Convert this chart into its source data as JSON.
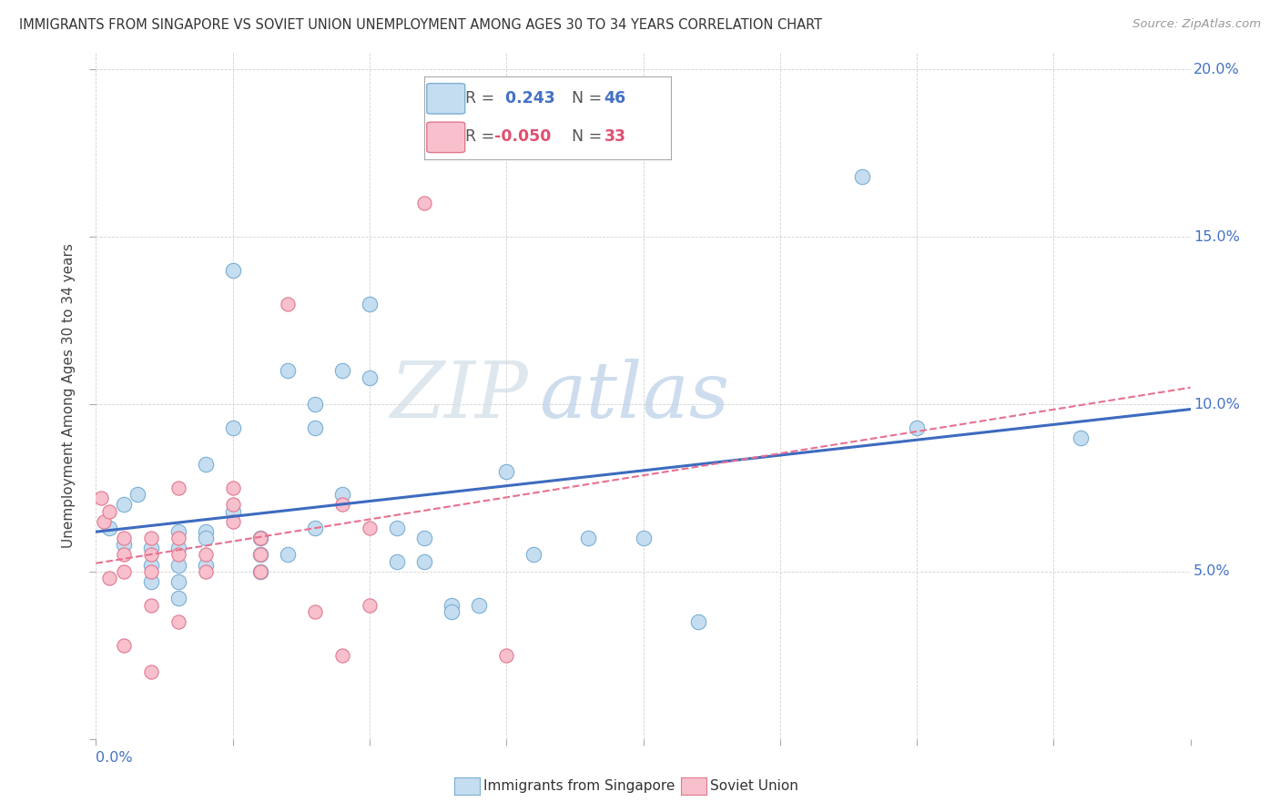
{
  "title": "IMMIGRANTS FROM SINGAPORE VS SOVIET UNION UNEMPLOYMENT AMONG AGES 30 TO 34 YEARS CORRELATION CHART",
  "source": "Source: ZipAtlas.com",
  "ylabel": "Unemployment Among Ages 30 to 34 years",
  "xlim": [
    0.0,
    0.04
  ],
  "ylim": [
    0.0,
    0.205
  ],
  "xticks": [
    0.0,
    0.005,
    0.01,
    0.015,
    0.02,
    0.025,
    0.03,
    0.035,
    0.04
  ],
  "yticks": [
    0.0,
    0.05,
    0.1,
    0.15,
    0.2
  ],
  "singapore_R": 0.243,
  "singapore_N": 46,
  "soviet_R": -0.05,
  "soviet_N": 33,
  "singapore_color": "#c5ddf0",
  "singapore_edge": "#7aafd4",
  "soviet_color": "#f8c0cc",
  "soviet_edge": "#e07890",
  "singapore_line_color": "#3d6bbf",
  "soviet_line_color": "#e87090",
  "watermark_color": "#d5eaf5",
  "blue_text_color": "#4472C4",
  "pink_text_color": "#e05070",
  "singapore_x": [
    0.0005,
    0.001,
    0.001,
    0.0015,
    0.002,
    0.002,
    0.002,
    0.003,
    0.003,
    0.003,
    0.003,
    0.003,
    0.004,
    0.004,
    0.004,
    0.004,
    0.005,
    0.005,
    0.005,
    0.006,
    0.006,
    0.006,
    0.007,
    0.007,
    0.008,
    0.008,
    0.008,
    0.009,
    0.009,
    0.01,
    0.01,
    0.011,
    0.011,
    0.012,
    0.012,
    0.013,
    0.013,
    0.014,
    0.015,
    0.016,
    0.018,
    0.02,
    0.022,
    0.028,
    0.03,
    0.036
  ],
  "singapore_y": [
    0.063,
    0.07,
    0.058,
    0.073,
    0.057,
    0.052,
    0.047,
    0.062,
    0.057,
    0.052,
    0.047,
    0.042,
    0.082,
    0.062,
    0.052,
    0.06,
    0.14,
    0.093,
    0.068,
    0.06,
    0.055,
    0.05,
    0.11,
    0.055,
    0.1,
    0.093,
    0.063,
    0.11,
    0.073,
    0.13,
    0.108,
    0.063,
    0.053,
    0.06,
    0.053,
    0.04,
    0.038,
    0.04,
    0.08,
    0.055,
    0.06,
    0.06,
    0.035,
    0.168,
    0.093,
    0.09
  ],
  "soviet_x": [
    0.0002,
    0.0003,
    0.0005,
    0.0005,
    0.001,
    0.001,
    0.001,
    0.001,
    0.002,
    0.002,
    0.002,
    0.002,
    0.002,
    0.003,
    0.003,
    0.003,
    0.003,
    0.004,
    0.004,
    0.005,
    0.005,
    0.005,
    0.006,
    0.006,
    0.006,
    0.007,
    0.008,
    0.009,
    0.009,
    0.01,
    0.01,
    0.012,
    0.015
  ],
  "soviet_y": [
    0.072,
    0.065,
    0.068,
    0.048,
    0.06,
    0.055,
    0.05,
    0.028,
    0.06,
    0.055,
    0.05,
    0.04,
    0.02,
    0.06,
    0.055,
    0.035,
    0.075,
    0.055,
    0.05,
    0.075,
    0.07,
    0.065,
    0.06,
    0.055,
    0.05,
    0.13,
    0.038,
    0.07,
    0.025,
    0.063,
    0.04,
    0.16,
    0.025
  ]
}
